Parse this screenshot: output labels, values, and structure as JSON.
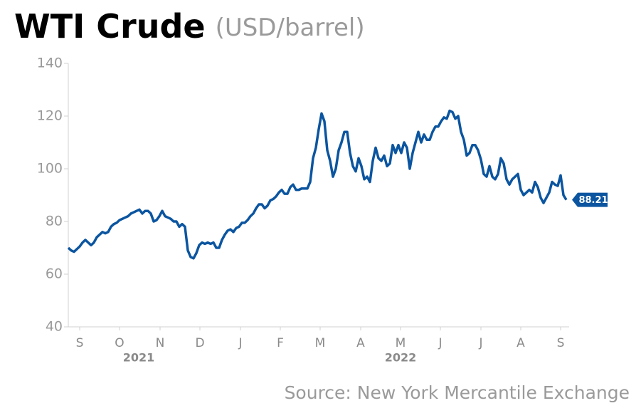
{
  "chart_data": {
    "type": "line",
    "title": "WTI Crude",
    "subtitle": "(USD/barrel)",
    "source": "Source: New York Mercantile Exchange",
    "xticks": [
      {
        "value": 4,
        "label": "S"
      },
      {
        "value": 18,
        "label": "O"
      },
      {
        "value": 32.25,
        "label": "N"
      },
      {
        "value": 46.25,
        "label": "D"
      },
      {
        "value": 60.5,
        "label": "J"
      },
      {
        "value": 74.5,
        "label": "F"
      },
      {
        "value": 88.5,
        "label": "M"
      },
      {
        "value": 102.75,
        "label": "A"
      },
      {
        "value": 116.75,
        "label": "M"
      },
      {
        "value": 130.75,
        "label": "J"
      },
      {
        "value": 145,
        "label": "J"
      },
      {
        "value": 159,
        "label": "A"
      },
      {
        "value": 173,
        "label": "S"
      }
    ],
    "year_labels": [
      {
        "value": 24.75,
        "label": "2021"
      },
      {
        "value": 116.75,
        "label": "2022"
      }
    ],
    "xlim": [
      0,
      175
    ],
    "ylim": [
      40,
      140
    ],
    "yticks": [
      40,
      60,
      80,
      100,
      120,
      140
    ],
    "series": [
      {
        "name": "WTI Crude",
        "color": "#0b55a0",
        "values": [
          70,
          69,
          68.5,
          69.5,
          70.5,
          72,
          73,
          72,
          71,
          72,
          74,
          75,
          76,
          75.5,
          76,
          78,
          79,
          79.5,
          80.5,
          81,
          81.5,
          82,
          83,
          83.5,
          84,
          84.5,
          83,
          84,
          84,
          83,
          80,
          80.5,
          82,
          84,
          82,
          81.5,
          81,
          80,
          80,
          78,
          79,
          78,
          69,
          66.5,
          66,
          68,
          71,
          72,
          71.5,
          72,
          71.5,
          72,
          70,
          70,
          73,
          75,
          76.5,
          77,
          76,
          77.5,
          78,
          79.5,
          79.5,
          80.5,
          82,
          83,
          85,
          86.5,
          86.5,
          85,
          86,
          88,
          88.5,
          89.5,
          91,
          92,
          90.5,
          90.5,
          93,
          94,
          92,
          92,
          92.5,
          92.5,
          92.5,
          95,
          104,
          108,
          115,
          121,
          118,
          107,
          103,
          97,
          100,
          107,
          110,
          114,
          114,
          106,
          101,
          99,
          104,
          101,
          96,
          97,
          95,
          103,
          108,
          104,
          103,
          105,
          101,
          102,
          109,
          106,
          109,
          106,
          110,
          108,
          100,
          106,
          110,
          114,
          110,
          113,
          111,
          111,
          114,
          116,
          116,
          118,
          119.5,
          119,
          122,
          121.5,
          119,
          120,
          114,
          111,
          105,
          106,
          109,
          109,
          107,
          103.5,
          98,
          97,
          101,
          97,
          96,
          98,
          104,
          102,
          96,
          94,
          96,
          97,
          98,
          92,
          90,
          91,
          92,
          91,
          95,
          93,
          89,
          87,
          89,
          91,
          95,
          94,
          93.5,
          97.5,
          90,
          88.21
        ]
      }
    ]
  }
}
